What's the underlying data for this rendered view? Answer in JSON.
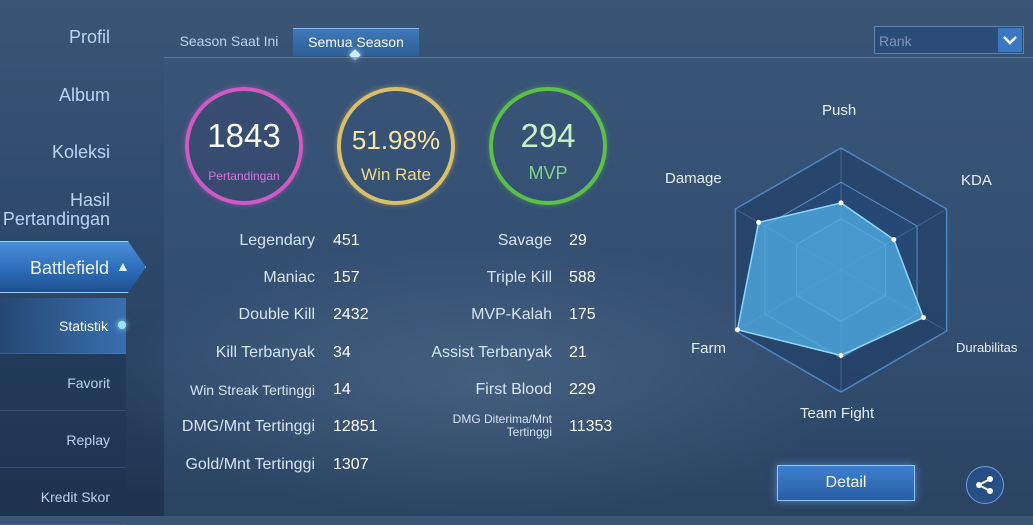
{
  "sidebar": {
    "items": [
      {
        "label": "Profil"
      },
      {
        "label": "Album"
      },
      {
        "label": "Koleksi"
      },
      {
        "label": "Hasil Pertandingan"
      }
    ],
    "active_section": {
      "label": "Battlefield"
    },
    "sub_items": [
      {
        "label": "Statistik"
      },
      {
        "label": "Favorit"
      },
      {
        "label": "Replay"
      },
      {
        "label": "Kredit Skor"
      }
    ]
  },
  "tabs": [
    {
      "label": "Season Saat Ini"
    },
    {
      "label": "Semua Season"
    }
  ],
  "rank_filter": {
    "value": "Rank"
  },
  "summary": {
    "matches": {
      "value": "1843",
      "label": "Pertandingan"
    },
    "win_rate": {
      "value": "51.98%",
      "label": "Win Rate"
    },
    "mvp": {
      "value": "294",
      "label": "MVP"
    }
  },
  "stats_left": [
    {
      "label": "Legendary",
      "value": "451"
    },
    {
      "label": "Maniac",
      "value": "157"
    },
    {
      "label": "Double Kill",
      "value": "2432"
    },
    {
      "label": "Kill Terbanyak",
      "value": "34"
    },
    {
      "label": "Win Streak Tertinggi",
      "value": "14"
    },
    {
      "label": "DMG/Mnt Tertinggi",
      "value": "12851"
    },
    {
      "label": "Gold/Mnt Tertinggi",
      "value": "1307"
    }
  ],
  "stats_right": [
    {
      "label": "Savage",
      "value": "29"
    },
    {
      "label": "Triple Kill",
      "value": "588"
    },
    {
      "label": "MVP-Kalah",
      "value": "175"
    },
    {
      "label": "Assist Terbanyak",
      "value": "21"
    },
    {
      "label": "First Blood",
      "value": "229"
    },
    {
      "label": "DMG Diterima/Mnt Tertinggi",
      "value": "11353"
    }
  ],
  "radar": {
    "axes": [
      "Push",
      "KDA",
      "Durabilitas",
      "Team Fight",
      "Farm",
      "Damage"
    ],
    "levels": [
      0.55,
      0.5,
      0.78,
      0.7,
      0.98,
      0.78
    ]
  },
  "actions": {
    "detail_label": "Detail",
    "share_icon": "share-icon"
  }
}
